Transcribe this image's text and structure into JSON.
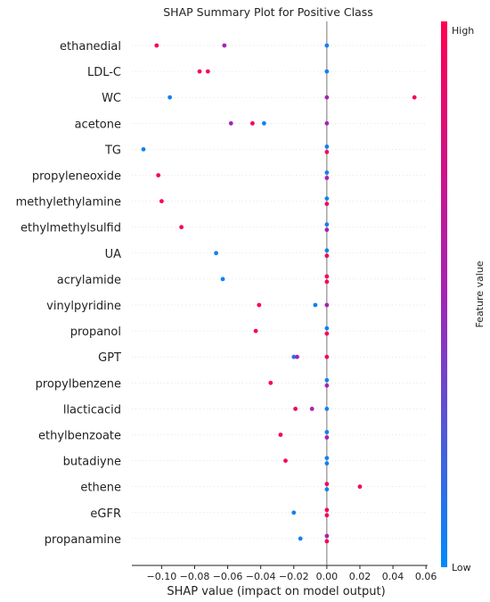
{
  "chart_data": {
    "type": "scatter",
    "title": "SHAP Summary Plot for Positive Class",
    "xlabel": "SHAP value (impact on model output)",
    "xlim": [
      -0.118,
      0.061
    ],
    "xticks": [
      -0.1,
      -0.08,
      -0.06,
      -0.04,
      -0.02,
      0.0,
      0.02,
      0.04,
      0.06
    ],
    "xtick_labels": [
      "−0.10",
      "−0.08",
      "−0.06",
      "−0.04",
      "−0.02",
      "0.00",
      "0.02",
      "0.04",
      "0.06"
    ],
    "colorbar": {
      "label": "Feature value",
      "high_label": "High",
      "low_label": "Low",
      "high_color": "#ff0052",
      "low_color": "#008bfb"
    },
    "features": [
      {
        "name": "ethanedial",
        "points": [
          {
            "x": -0.103,
            "v": 0.95,
            "dy": 0
          },
          {
            "x": -0.062,
            "v": 0.5,
            "dy": 0
          },
          {
            "x": 0.0,
            "v": 0.05,
            "dy": 0
          }
        ]
      },
      {
        "name": "LDL-C",
        "points": [
          {
            "x": -0.077,
            "v": 0.95,
            "dy": 0
          },
          {
            "x": -0.072,
            "v": 0.95,
            "dy": 0
          },
          {
            "x": 0.0,
            "v": 0.05,
            "dy": 0
          }
        ]
      },
      {
        "name": "WC",
        "points": [
          {
            "x": -0.095,
            "v": 0.05,
            "dy": 0
          },
          {
            "x": 0.0,
            "v": 0.55,
            "dy": 0
          },
          {
            "x": 0.053,
            "v": 0.95,
            "dy": 0
          }
        ]
      },
      {
        "name": "acetone",
        "points": [
          {
            "x": -0.058,
            "v": 0.5,
            "dy": 0
          },
          {
            "x": -0.045,
            "v": 0.95,
            "dy": 0
          },
          {
            "x": -0.038,
            "v": 0.05,
            "dy": 0
          },
          {
            "x": 0.0,
            "v": 0.5,
            "dy": 0
          }
        ]
      },
      {
        "name": "TG",
        "points": [
          {
            "x": -0.111,
            "v": 0.05,
            "dy": 0
          },
          {
            "x": 0.0,
            "v": 0.05,
            "dy": -1
          },
          {
            "x": 0.0,
            "v": 0.95,
            "dy": 1
          }
        ]
      },
      {
        "name": "propyleneoxide",
        "points": [
          {
            "x": -0.102,
            "v": 0.95,
            "dy": 0
          },
          {
            "x": 0.0,
            "v": 0.05,
            "dy": -1
          },
          {
            "x": 0.0,
            "v": 0.55,
            "dy": 1
          }
        ]
      },
      {
        "name": "methylethylamine",
        "points": [
          {
            "x": -0.1,
            "v": 0.95,
            "dy": 0
          },
          {
            "x": 0.0,
            "v": 0.05,
            "dy": -1
          },
          {
            "x": 0.0,
            "v": 0.95,
            "dy": 1
          }
        ]
      },
      {
        "name": "ethylmethylsulfid",
        "points": [
          {
            "x": -0.088,
            "v": 0.95,
            "dy": 0
          },
          {
            "x": 0.0,
            "v": 0.05,
            "dy": -1
          },
          {
            "x": 0.0,
            "v": 0.55,
            "dy": 1
          }
        ]
      },
      {
        "name": "UA",
        "points": [
          {
            "x": -0.067,
            "v": 0.05,
            "dy": 0
          },
          {
            "x": 0.0,
            "v": 0.05,
            "dy": -1
          },
          {
            "x": 0.0,
            "v": 0.95,
            "dy": 1
          }
        ]
      },
      {
        "name": "acrylamide",
        "points": [
          {
            "x": -0.063,
            "v": 0.05,
            "dy": 0
          },
          {
            "x": 0.0,
            "v": 0.95,
            "dy": -1
          },
          {
            "x": 0.0,
            "v": 0.95,
            "dy": 1
          }
        ]
      },
      {
        "name": "vinylpyridine",
        "points": [
          {
            "x": -0.041,
            "v": 0.95,
            "dy": 0
          },
          {
            "x": -0.007,
            "v": 0.05,
            "dy": 0
          },
          {
            "x": 0.0,
            "v": 0.55,
            "dy": 0
          }
        ]
      },
      {
        "name": "propanol",
        "points": [
          {
            "x": -0.043,
            "v": 0.95,
            "dy": 0
          },
          {
            "x": 0.0,
            "v": 0.05,
            "dy": -1
          },
          {
            "x": 0.0,
            "v": 0.95,
            "dy": 1
          }
        ]
      },
      {
        "name": "GPT",
        "points": [
          {
            "x": -0.02,
            "v": 0.1,
            "dy": 0
          },
          {
            "x": -0.018,
            "v": 0.55,
            "dy": 0
          },
          {
            "x": 0.0,
            "v": 0.95,
            "dy": 0
          }
        ]
      },
      {
        "name": "propylbenzene",
        "points": [
          {
            "x": -0.034,
            "v": 0.95,
            "dy": 0
          },
          {
            "x": 0.0,
            "v": 0.05,
            "dy": -1
          },
          {
            "x": 0.0,
            "v": 0.55,
            "dy": 1
          }
        ]
      },
      {
        "name": "llacticacid",
        "points": [
          {
            "x": -0.019,
            "v": 0.95,
            "dy": 0
          },
          {
            "x": -0.009,
            "v": 0.55,
            "dy": 0
          },
          {
            "x": 0.0,
            "v": 0.05,
            "dy": 0
          }
        ]
      },
      {
        "name": "ethylbenzoate",
        "points": [
          {
            "x": -0.028,
            "v": 0.95,
            "dy": 0
          },
          {
            "x": 0.0,
            "v": 0.05,
            "dy": -1
          },
          {
            "x": 0.0,
            "v": 0.55,
            "dy": 1
          }
        ]
      },
      {
        "name": "butadiyne",
        "points": [
          {
            "x": -0.025,
            "v": 0.95,
            "dy": 0
          },
          {
            "x": 0.0,
            "v": 0.05,
            "dy": -1
          },
          {
            "x": 0.0,
            "v": 0.05,
            "dy": 1
          }
        ]
      },
      {
        "name": "ethene",
        "points": [
          {
            "x": 0.0,
            "v": 0.95,
            "dy": -1
          },
          {
            "x": 0.0,
            "v": 0.05,
            "dy": 1
          },
          {
            "x": 0.02,
            "v": 0.95,
            "dy": 0
          }
        ]
      },
      {
        "name": "eGFR",
        "points": [
          {
            "x": -0.02,
            "v": 0.05,
            "dy": 0
          },
          {
            "x": 0.0,
            "v": 0.95,
            "dy": -1
          },
          {
            "x": 0.0,
            "v": 0.95,
            "dy": 1
          }
        ]
      },
      {
        "name": "propanamine",
        "points": [
          {
            "x": -0.016,
            "v": 0.05,
            "dy": 0
          },
          {
            "x": 0.0,
            "v": 0.55,
            "dy": -1
          },
          {
            "x": 0.0,
            "v": 0.95,
            "dy": 1
          }
        ]
      }
    ]
  }
}
